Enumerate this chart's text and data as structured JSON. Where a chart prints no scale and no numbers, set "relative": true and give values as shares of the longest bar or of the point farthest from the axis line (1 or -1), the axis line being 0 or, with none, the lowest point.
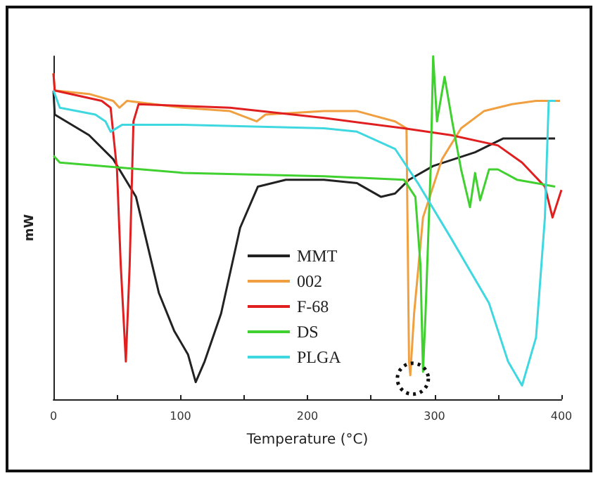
{
  "chart_data": {
    "type": "line",
    "relative": true,
    "xlabel": "Temperature (°C)",
    "ylabel": "mW",
    "xlim": [
      0,
      400
    ],
    "xticks": [
      0,
      {
        "value": 50,
        "label": null
      },
      100,
      {
        "value": 150,
        "label": null
      },
      200,
      {
        "value": 250,
        "label": null
      },
      300,
      {
        "value": 350,
        "label": null
      },
      400
    ],
    "legend": "center",
    "marker": "none",
    "line_style": "solid",
    "grid": false,
    "series": [
      {
        "name": "MMT",
        "color": "#222222",
        "x": [
          0,
          1,
          28,
          47,
          65,
          83,
          95,
          106,
          112,
          119,
          132,
          147,
          161,
          183,
          213,
          239,
          258,
          269,
          280,
          299,
          332,
          354,
          395
        ],
        "values": [
          0.9,
          0.83,
          0.77,
          0.7,
          0.59,
          0.31,
          0.2,
          0.13,
          0.05,
          0.11,
          0.25,
          0.5,
          0.62,
          0.64,
          0.64,
          0.63,
          0.59,
          0.6,
          0.64,
          0.68,
          0.72,
          0.76,
          0.76
        ]
      },
      {
        "name": "002",
        "color": "#f0a040",
        "x": [
          0,
          1,
          28,
          47,
          52,
          58,
          102,
          139,
          160,
          167,
          213,
          239,
          269,
          278,
          280,
          281,
          284,
          291,
          306,
          321,
          339,
          361,
          380,
          399
        ],
        "values": [
          0.95,
          0.9,
          0.89,
          0.87,
          0.85,
          0.87,
          0.85,
          0.84,
          0.81,
          0.83,
          0.84,
          0.84,
          0.81,
          0.79,
          0.11,
          0.07,
          0.25,
          0.53,
          0.7,
          0.79,
          0.84,
          0.86,
          0.87,
          0.87
        ]
      },
      {
        "name": "F-68",
        "color": "#e02020",
        "x": [
          0,
          1,
          38,
          45,
          50,
          53,
          57,
          60,
          63,
          67,
          139,
          213,
          276,
          313,
          350,
          369,
          387,
          393,
          400
        ],
        "values": [
          0.95,
          0.9,
          0.87,
          0.85,
          0.67,
          0.39,
          0.11,
          0.39,
          0.81,
          0.86,
          0.85,
          0.82,
          0.79,
          0.77,
          0.74,
          0.69,
          0.62,
          0.53,
          0.61
        ]
      },
      {
        "name": "DS",
        "color": "#40d030",
        "x": [
          0,
          5,
          102,
          213,
          276,
          285,
          289,
          291,
          293,
          297,
          299,
          302,
          308,
          314,
          321,
          328,
          332,
          336,
          343,
          350,
          365,
          380,
          395
        ],
        "values": [
          0.71,
          0.69,
          0.66,
          0.65,
          0.64,
          0.59,
          0.39,
          0.08,
          0.25,
          0.67,
          1.0,
          0.81,
          0.94,
          0.81,
          0.67,
          0.56,
          0.66,
          0.58,
          0.67,
          0.67,
          0.64,
          0.63,
          0.62
        ]
      },
      {
        "name": "PLGA",
        "color": "#40d8e0",
        "x": [
          0,
          5,
          33,
          41,
          45,
          54,
          102,
          213,
          239,
          269,
          287,
          313,
          343,
          358,
          369,
          380,
          387,
          390,
          395
        ],
        "values": [
          0.9,
          0.85,
          0.83,
          0.81,
          0.78,
          0.8,
          0.8,
          0.79,
          0.78,
          0.73,
          0.63,
          0.47,
          0.28,
          0.11,
          0.04,
          0.18,
          0.53,
          0.87,
          0.87
        ]
      }
    ]
  }
}
